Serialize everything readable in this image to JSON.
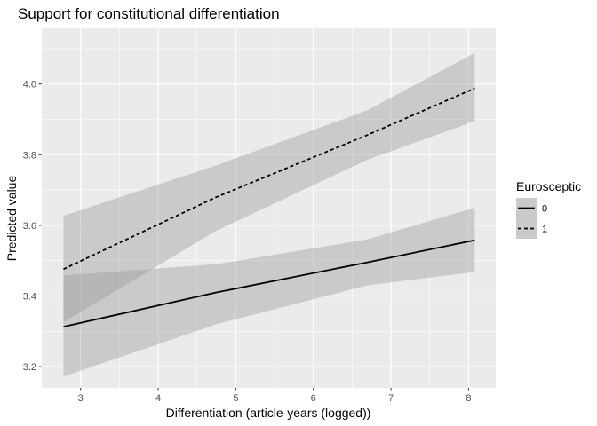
{
  "chart_data": {
    "type": "line",
    "title": "Support for constitutional differentiation",
    "xlabel": "Differentiation (article-years (logged))",
    "ylabel": "Predicted value",
    "xlim": [
      2.5,
      8.35
    ],
    "ylim": [
      3.14,
      4.16
    ],
    "xticks": [
      "3",
      "4",
      "5",
      "6",
      "7",
      "8"
    ],
    "yticks": [
      "3.2",
      "3.4",
      "3.6",
      "3.8",
      "4.0"
    ],
    "grid": true,
    "legend": {
      "title": "Eurosceptic",
      "position": "right"
    },
    "series": [
      {
        "name": "0",
        "linestyle": "solid",
        "x": [
          2.78,
          4.75,
          6.69,
          8.08
        ],
        "y": [
          3.313,
          3.41,
          3.495,
          3.558
        ],
        "ci_lower": [
          3.172,
          3.32,
          3.43,
          3.468
        ],
        "ci_upper": [
          3.458,
          3.49,
          3.56,
          3.65
        ]
      },
      {
        "name": "1",
        "linestyle": "dashed",
        "x": [
          2.78,
          4.75,
          6.69,
          8.08
        ],
        "y": [
          3.476,
          3.68,
          3.855,
          3.988
        ],
        "ci_lower": [
          3.325,
          3.585,
          3.785,
          3.895
        ],
        "ci_upper": [
          3.627,
          3.77,
          3.925,
          4.088
        ]
      }
    ]
  },
  "colors": {
    "panel": "#ebebeb",
    "grid": "#ffffff",
    "band": "#999999",
    "line": "#000000"
  }
}
